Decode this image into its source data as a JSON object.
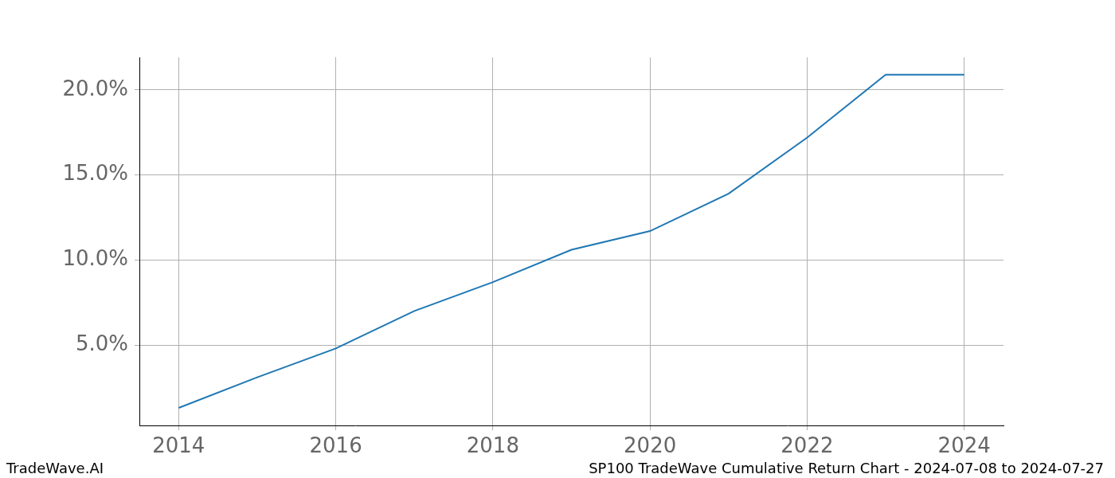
{
  "chart_data": {
    "type": "line",
    "title": "SP100 TradeWave Cumulative Return Chart - 2024-07-08 to 2024-07-27",
    "source": "TradeWave.AI",
    "x": [
      2014,
      2015,
      2016,
      2017,
      2018,
      2019,
      2020,
      2021,
      2022,
      2023,
      2024
    ],
    "values": [
      1.3,
      3.1,
      4.8,
      7.0,
      8.7,
      10.6,
      11.7,
      13.9,
      17.2,
      20.9,
      20.9
    ],
    "color": "#1f77b4",
    "xlim": [
      2013.5,
      2024.5
    ],
    "xticks": [
      2014,
      2016,
      2018,
      2020,
      2022,
      2024
    ],
    "ylim": [
      0.27,
      21.92
    ],
    "yticks": [
      {
        "value": 5,
        "label": "5.0%"
      },
      {
        "value": 10,
        "label": "10.0%"
      },
      {
        "value": 15,
        "label": "15.0%"
      },
      {
        "value": 20,
        "label": "20.0%"
      }
    ],
    "grid": true
  }
}
